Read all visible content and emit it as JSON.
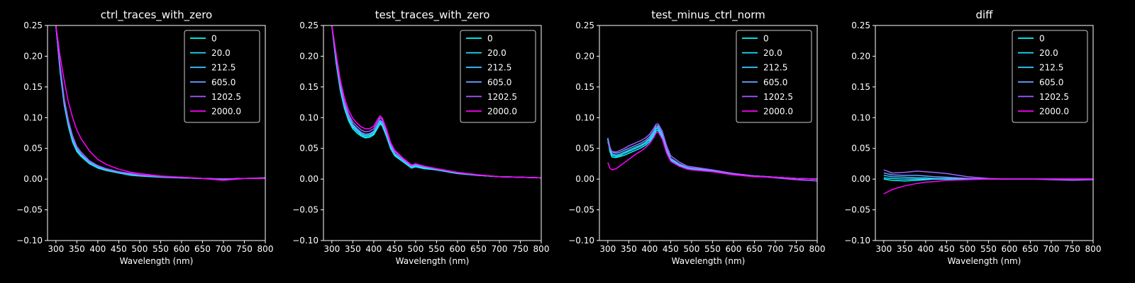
{
  "figure": {
    "background": "#000000",
    "foreground": "#ffffff"
  },
  "series_colors": [
    "#00ffff",
    "#1fe0ff",
    "#40c0ff",
    "#66a0ff",
    "#a060ff",
    "#ff00ff"
  ],
  "chart_data": [
    {
      "type": "line",
      "title": "ctrl_traces_with_zero",
      "xlabel": "Wavelength (nm)",
      "ylabel": "",
      "xlim": [
        280,
        800
      ],
      "ylim": [
        -0.1,
        0.25
      ],
      "xticks": [
        "300",
        "350",
        "400",
        "450",
        "500",
        "550",
        "600",
        "650",
        "700",
        "750",
        "800"
      ],
      "yticks": [
        "−0.10",
        "−0.05",
        "0.00",
        "0.05",
        "0.10",
        "0.15",
        "0.20",
        "0.25"
      ],
      "grid": false,
      "legend_position": "top-right",
      "x": [
        300,
        310,
        320,
        330,
        340,
        350,
        360,
        380,
        400,
        420,
        450,
        480,
        500,
        550,
        600,
        650,
        700,
        750,
        800
      ],
      "series": [
        {
          "name": "0",
          "values": [
            0.25,
            0.175,
            0.12,
            0.085,
            0.06,
            0.045,
            0.037,
            0.025,
            0.018,
            0.014,
            0.01,
            0.006,
            0.005,
            0.003,
            0.002,
            0.001,
            0.0,
            0.001,
            0.001
          ]
        },
        {
          "name": "20.0",
          "values": [
            0.25,
            0.178,
            0.122,
            0.087,
            0.062,
            0.047,
            0.038,
            0.026,
            0.019,
            0.015,
            0.011,
            0.007,
            0.006,
            0.004,
            0.002,
            0.001,
            0.0,
            0.001,
            0.001
          ]
        },
        {
          "name": "212.5",
          "values": [
            0.25,
            0.18,
            0.125,
            0.09,
            0.064,
            0.049,
            0.04,
            0.027,
            0.02,
            0.015,
            0.011,
            0.007,
            0.006,
            0.004,
            0.002,
            0.001,
            0.0,
            0.001,
            0.001
          ]
        },
        {
          "name": "605.0",
          "values": [
            0.25,
            0.182,
            0.127,
            0.092,
            0.066,
            0.05,
            0.041,
            0.028,
            0.021,
            0.016,
            0.012,
            0.008,
            0.006,
            0.004,
            0.003,
            0.001,
            0.0,
            0.001,
            0.002
          ]
        },
        {
          "name": "1202.5",
          "values": [
            0.25,
            0.185,
            0.13,
            0.095,
            0.07,
            0.053,
            0.044,
            0.03,
            0.022,
            0.017,
            0.012,
            0.009,
            0.007,
            0.004,
            0.003,
            0.001,
            0.0,
            0.001,
            0.002
          ]
        },
        {
          "name": "2000.0",
          "values": [
            0.25,
            0.2,
            0.16,
            0.125,
            0.1,
            0.08,
            0.066,
            0.046,
            0.032,
            0.024,
            0.016,
            0.011,
            0.009,
            0.005,
            0.003,
            0.001,
            -0.002,
            0.001,
            0.001
          ]
        }
      ]
    },
    {
      "type": "line",
      "title": "test_traces_with_zero",
      "xlabel": "Wavelength (nm)",
      "ylabel": "",
      "xlim": [
        280,
        800
      ],
      "ylim": [
        -0.1,
        0.25
      ],
      "xticks": [
        "300",
        "350",
        "400",
        "450",
        "500",
        "550",
        "600",
        "650",
        "700",
        "750",
        "800"
      ],
      "yticks": [
        "−0.10",
        "−0.05",
        "0.00",
        "0.05",
        "0.10",
        "0.15",
        "0.20",
        "0.25"
      ],
      "grid": false,
      "legend_position": "top-right",
      "x": [
        300,
        310,
        320,
        330,
        340,
        350,
        360,
        370,
        380,
        390,
        400,
        410,
        415,
        420,
        430,
        440,
        450,
        470,
        490,
        500,
        520,
        550,
        600,
        650,
        700,
        750,
        800
      ],
      "series": [
        {
          "name": "0",
          "values": [
            0.25,
            0.19,
            0.145,
            0.115,
            0.095,
            0.082,
            0.075,
            0.07,
            0.067,
            0.068,
            0.072,
            0.084,
            0.09,
            0.087,
            0.07,
            0.05,
            0.038,
            0.028,
            0.018,
            0.02,
            0.017,
            0.015,
            0.009,
            0.006,
            0.004,
            0.003,
            0.002
          ]
        },
        {
          "name": "20.0",
          "values": [
            0.25,
            0.192,
            0.148,
            0.118,
            0.098,
            0.085,
            0.078,
            0.072,
            0.069,
            0.07,
            0.074,
            0.086,
            0.092,
            0.089,
            0.072,
            0.052,
            0.04,
            0.029,
            0.019,
            0.021,
            0.018,
            0.015,
            0.009,
            0.006,
            0.004,
            0.003,
            0.002
          ]
        },
        {
          "name": "212.5",
          "values": [
            0.25,
            0.195,
            0.15,
            0.12,
            0.1,
            0.087,
            0.08,
            0.074,
            0.071,
            0.072,
            0.076,
            0.088,
            0.094,
            0.091,
            0.074,
            0.053,
            0.041,
            0.03,
            0.02,
            0.022,
            0.019,
            0.016,
            0.01,
            0.006,
            0.004,
            0.003,
            0.002
          ]
        },
        {
          "name": "605.0",
          "values": [
            0.25,
            0.197,
            0.152,
            0.122,
            0.102,
            0.089,
            0.082,
            0.076,
            0.073,
            0.074,
            0.078,
            0.09,
            0.096,
            0.093,
            0.076,
            0.055,
            0.042,
            0.031,
            0.021,
            0.023,
            0.02,
            0.016,
            0.01,
            0.006,
            0.004,
            0.003,
            0.002
          ]
        },
        {
          "name": "1202.5",
          "values": [
            0.25,
            0.2,
            0.156,
            0.126,
            0.106,
            0.093,
            0.086,
            0.08,
            0.077,
            0.078,
            0.082,
            0.094,
            0.1,
            0.097,
            0.079,
            0.058,
            0.045,
            0.033,
            0.022,
            0.024,
            0.021,
            0.017,
            0.011,
            0.007,
            0.004,
            0.003,
            0.002
          ]
        },
        {
          "name": "2000.0",
          "values": [
            0.25,
            0.205,
            0.162,
            0.132,
            0.112,
            0.099,
            0.091,
            0.085,
            0.082,
            0.082,
            0.086,
            0.098,
            0.103,
            0.1,
            0.082,
            0.06,
            0.047,
            0.034,
            0.023,
            0.025,
            0.021,
            0.017,
            0.011,
            0.007,
            0.004,
            0.003,
            0.002
          ]
        }
      ]
    },
    {
      "type": "line",
      "title": "test_minus_ctrl_norm",
      "xlabel": "Wavelength (nm)",
      "ylabel": "",
      "xlim": [
        280,
        800
      ],
      "ylim": [
        -0.1,
        0.25
      ],
      "xticks": [
        "300",
        "350",
        "400",
        "450",
        "500",
        "550",
        "600",
        "650",
        "700",
        "750",
        "800"
      ],
      "yticks": [
        "−0.10",
        "−0.05",
        "0.00",
        "0.05",
        "0.10",
        "0.15",
        "0.20",
        "0.25"
      ],
      "grid": false,
      "legend_position": "top-right",
      "x": [
        300,
        305,
        310,
        320,
        330,
        340,
        350,
        360,
        370,
        380,
        390,
        400,
        410,
        415,
        420,
        430,
        440,
        450,
        470,
        490,
        500,
        550,
        600,
        650,
        700,
        750,
        800
      ],
      "series": [
        {
          "name": "0",
          "values": [
            0.065,
            0.045,
            0.036,
            0.035,
            0.037,
            0.039,
            0.042,
            0.045,
            0.048,
            0.051,
            0.055,
            0.061,
            0.071,
            0.078,
            0.08,
            0.068,
            0.045,
            0.03,
            0.022,
            0.017,
            0.016,
            0.013,
            0.008,
            0.005,
            0.003,
            0.001,
            0.0
          ]
        },
        {
          "name": "20.0",
          "values": [
            0.065,
            0.048,
            0.039,
            0.037,
            0.039,
            0.042,
            0.045,
            0.048,
            0.051,
            0.054,
            0.058,
            0.064,
            0.074,
            0.081,
            0.083,
            0.07,
            0.047,
            0.031,
            0.023,
            0.018,
            0.016,
            0.013,
            0.008,
            0.005,
            0.003,
            0.001,
            0.0
          ]
        },
        {
          "name": "212.5",
          "values": [
            0.066,
            0.05,
            0.041,
            0.039,
            0.041,
            0.044,
            0.047,
            0.05,
            0.053,
            0.056,
            0.06,
            0.066,
            0.076,
            0.083,
            0.085,
            0.072,
            0.048,
            0.032,
            0.024,
            0.018,
            0.017,
            0.014,
            0.008,
            0.005,
            0.003,
            0.001,
            0.0
          ]
        },
        {
          "name": "605.0",
          "values": [
            0.067,
            0.052,
            0.044,
            0.042,
            0.044,
            0.047,
            0.05,
            0.053,
            0.056,
            0.059,
            0.063,
            0.069,
            0.079,
            0.086,
            0.087,
            0.074,
            0.05,
            0.034,
            0.025,
            0.019,
            0.018,
            0.014,
            0.009,
            0.005,
            0.003,
            0.001,
            0.0
          ]
        },
        {
          "name": "1202.5",
          "values": [
            0.06,
            0.05,
            0.045,
            0.044,
            0.047,
            0.05,
            0.054,
            0.057,
            0.06,
            0.063,
            0.067,
            0.073,
            0.083,
            0.089,
            0.09,
            0.078,
            0.055,
            0.038,
            0.028,
            0.021,
            0.02,
            0.015,
            0.009,
            0.005,
            0.002,
            -0.001,
            -0.003
          ]
        },
        {
          "name": "2000.0",
          "values": [
            0.027,
            0.018,
            0.015,
            0.017,
            0.022,
            0.027,
            0.032,
            0.037,
            0.042,
            0.046,
            0.051,
            0.058,
            0.068,
            0.075,
            0.077,
            0.065,
            0.043,
            0.029,
            0.021,
            0.016,
            0.015,
            0.012,
            0.007,
            0.004,
            0.003,
            0.001,
            0.0
          ]
        }
      ]
    },
    {
      "type": "line",
      "title": "diff",
      "xlabel": "Wavelength (nm)",
      "ylabel": "",
      "xlim": [
        280,
        800
      ],
      "ylim": [
        -0.1,
        0.25
      ],
      "xticks": [
        "300",
        "350",
        "400",
        "450",
        "500",
        "550",
        "600",
        "650",
        "700",
        "750",
        "800"
      ],
      "yticks": [
        "−0.10",
        "−0.05",
        "0.00",
        "0.05",
        "0.10",
        "0.15",
        "0.20",
        "0.25"
      ],
      "grid": false,
      "legend_position": "top-right",
      "x": [
        300,
        320,
        350,
        380,
        400,
        420,
        450,
        500,
        550,
        600,
        650,
        700,
        750,
        800
      ],
      "series": [
        {
          "name": "0",
          "values": [
            0.0,
            -0.002,
            -0.003,
            -0.002,
            -0.001,
            0.0,
            0.0,
            0.0,
            0.0,
            0.0,
            0.0,
            0.0,
            0.0,
            0.0
          ]
        },
        {
          "name": "20.0",
          "values": [
            0.002,
            0.001,
            0.0,
            0.0,
            0.0,
            0.0,
            0.0,
            0.0,
            0.0,
            0.0,
            0.0,
            0.0,
            0.0,
            0.0
          ]
        },
        {
          "name": "212.5",
          "values": [
            0.006,
            0.004,
            0.003,
            0.002,
            0.002,
            0.001,
            0.001,
            0.0,
            0.0,
            0.0,
            0.0,
            0.0,
            0.0,
            0.0
          ]
        },
        {
          "name": "605.0",
          "values": [
            0.01,
            0.007,
            0.006,
            0.006,
            0.005,
            0.004,
            0.003,
            0.001,
            0.0,
            0.0,
            0.0,
            0.0,
            0.0,
            0.0
          ]
        },
        {
          "name": "1202.5",
          "values": [
            0.015,
            0.01,
            0.011,
            0.013,
            0.012,
            0.011,
            0.009,
            0.004,
            0.001,
            0.0,
            0.0,
            -0.001,
            -0.002,
            -0.001
          ]
        },
        {
          "name": "2000.0",
          "values": [
            -0.024,
            -0.017,
            -0.011,
            -0.007,
            -0.005,
            -0.004,
            -0.002,
            -0.001,
            0.0,
            0.0,
            0.0,
            0.0,
            0.0,
            0.0
          ]
        }
      ]
    }
  ]
}
